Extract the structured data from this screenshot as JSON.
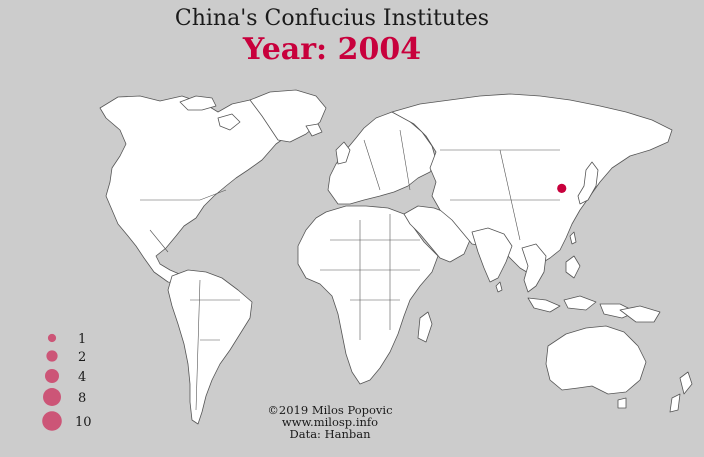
{
  "title": "China's Confucius Institutes",
  "year_label": "Year:",
  "year": "2004",
  "colors": {
    "background": "#cccccc",
    "land": "#ffffff",
    "border": "#555555",
    "marker": "#c8003c",
    "legend_marker": "#cc5577"
  },
  "institutes": [
    {
      "location": "Seoul, South Korea",
      "count": 1,
      "lon": 127.0,
      "lat": 37.5
    }
  ],
  "legend": {
    "entries": [
      "1",
      "2",
      "4",
      "8",
      "10"
    ],
    "values": [
      1,
      2,
      4,
      8,
      10
    ]
  },
  "credits": {
    "line1": "©2019 Milos Popovic",
    "line2": "www.milosp.info",
    "line3": "Data: Hanban"
  }
}
